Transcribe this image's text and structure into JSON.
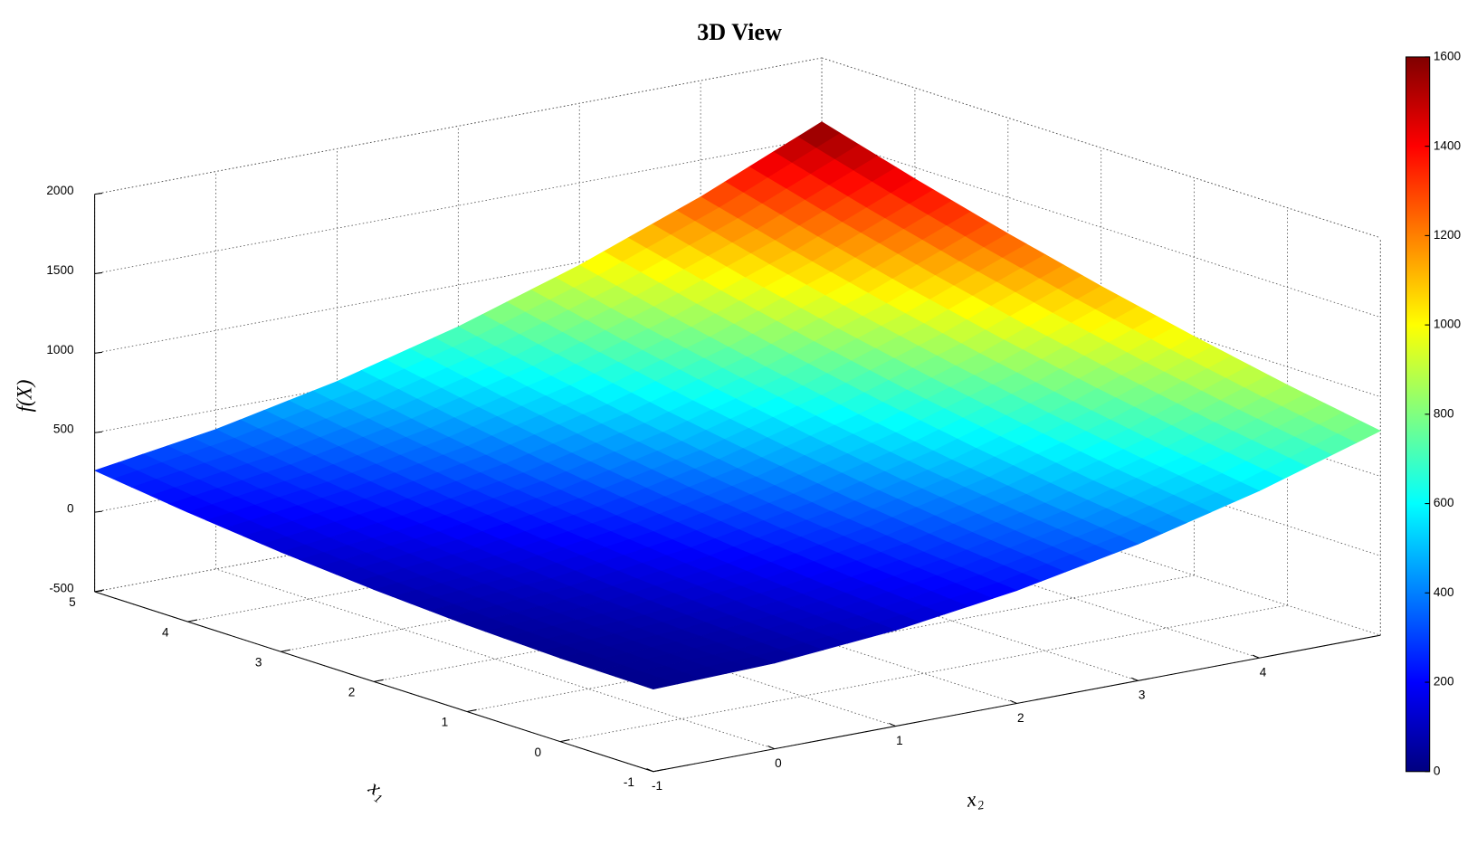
{
  "chart_data": {
    "type": "surface",
    "title": "3D View",
    "xlabel": "x₁",
    "ylabel": "x₂",
    "zlabel": "f(X)",
    "x1": [
      -1,
      0,
      1,
      2,
      3,
      4,
      5
    ],
    "x2": [
      -1,
      0,
      1,
      2,
      3,
      4,
      5
    ],
    "z": [
      [
        18,
        39,
        103,
        210,
        359,
        551,
        785
      ],
      [
        25,
        62,
        142,
        264,
        429,
        636,
        886
      ],
      [
        45,
        98,
        194,
        332,
        512,
        736,
        1002
      ],
      [
        79,
        148,
        259,
        413,
        609,
        849,
        1130
      ],
      [
        126,
        211,
        338,
        508,
        720,
        975,
        1272
      ],
      [
        188,
        288,
        431,
        616,
        844,
        1115,
        1428
      ],
      [
        262,
        378,
        537,
        738,
        982,
        1269,
        1598
      ]
    ],
    "x1lim": [
      -1,
      5
    ],
    "x1ticks": [
      -1,
      0,
      1,
      2,
      3,
      4,
      5
    ],
    "x2lim": [
      -1,
      5
    ],
    "x2ticks": [
      -1,
      0,
      1,
      2,
      3,
      4
    ],
    "zlim": [
      -500,
      2000
    ],
    "zticks": [
      -500,
      0,
      500,
      1000,
      1500,
      2000
    ],
    "colormap": "jet",
    "clim": [
      0,
      1600
    ],
    "cticks": [
      0,
      200,
      400,
      600,
      800,
      1000,
      1200,
      1400,
      1600
    ],
    "grid": true
  }
}
